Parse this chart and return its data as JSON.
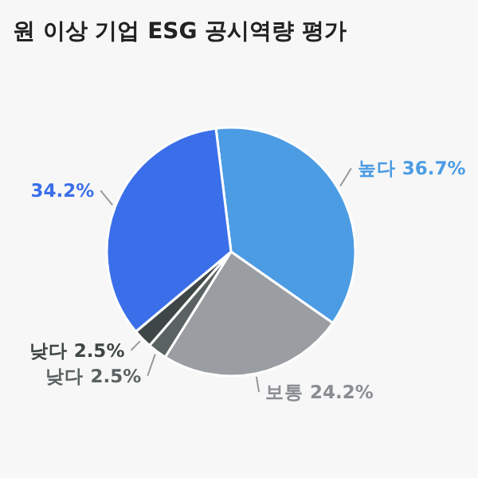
{
  "chart_data": {
    "type": "pie",
    "title": "원 이상 기업 ESG 공시역량 평가",
    "categories": [
      "높다",
      "보통",
      "낮다",
      "낮다",
      null
    ],
    "values": [
      36.7,
      24.2,
      2.5,
      2.5,
      34.2
    ],
    "colors": [
      "#4c9ce4",
      "#9a9da2",
      "#5a6262",
      "#3f4646",
      "#3b6fe9"
    ],
    "value_labels": [
      "36.7%",
      "24.2%",
      "2.5%",
      "2.5%",
      "34.2%"
    ]
  }
}
